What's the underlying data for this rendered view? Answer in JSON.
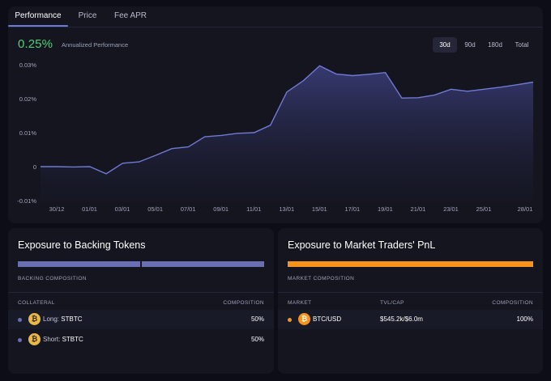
{
  "tabs": [
    {
      "label": "Performance",
      "active": true
    },
    {
      "label": "Price",
      "active": false
    },
    {
      "label": "Fee APR",
      "active": false
    }
  ],
  "performance": {
    "value": "0.25%",
    "label": "Annualized Performance",
    "value_color": "#4fcf7a"
  },
  "ranges": [
    {
      "label": "30d",
      "active": true
    },
    {
      "label": "90d",
      "active": false
    },
    {
      "label": "180d",
      "active": false
    },
    {
      "label": "Total",
      "active": false
    }
  ],
  "chart_data": {
    "type": "area",
    "y_tick_labels": [
      "0.03%",
      "0.02%",
      "0.01%",
      "0",
      "-0.01%"
    ],
    "y_tick_values": [
      0.03,
      0.02,
      0.01,
      0,
      -0.01
    ],
    "x_tick_labels": [
      "30/12",
      "01/01",
      "03/01",
      "05/01",
      "07/01",
      "09/01",
      "11/01",
      "13/01",
      "15/01",
      "17/01",
      "19/01",
      "21/01",
      "23/01",
      "25/01",
      "28/01"
    ],
    "ylim": [
      -0.0105,
      0.0305
    ],
    "x": [
      0,
      1,
      2,
      3,
      4,
      5,
      6,
      7,
      8,
      9,
      10,
      11,
      12,
      13,
      14,
      15,
      16,
      17,
      18,
      19,
      20,
      21,
      22,
      23,
      24,
      25,
      26,
      27,
      28,
      29,
      30
    ],
    "values": [
      0.0,
      0.0,
      -0.0001,
      0.0,
      -0.0021,
      0.001,
      0.0014,
      0.0033,
      0.0053,
      0.0058,
      0.0088,
      0.0092,
      0.0098,
      0.01,
      0.0122,
      0.022,
      0.0253,
      0.0297,
      0.0273,
      0.0268,
      0.0272,
      0.0277,
      0.0202,
      0.0203,
      0.0211,
      0.0228,
      0.0222,
      0.0228,
      0.0234,
      0.0241,
      0.0249
    ],
    "line_color": "#7179d6",
    "fill_color": "#3c3f7a",
    "grid": false
  },
  "backing": {
    "title": "Exposure to Backing Tokens",
    "section_label": "BACKING COMPOSITION",
    "bar_color": "#6a6eb3",
    "bar_segments": [
      50,
      50
    ],
    "col_collateral": "COLLATERAL",
    "col_composition": "COMPOSITION",
    "rows": [
      {
        "side": "Long:",
        "token": "STBTC",
        "composition": "50%"
      },
      {
        "side": "Short:",
        "token": "STBTC",
        "composition": "50%"
      }
    ]
  },
  "market": {
    "title": "Exposure to Market Traders' PnL",
    "section_label": "MARKET COMPOSITION",
    "bar_color": "#f7931a",
    "col_market": "MARKET",
    "col_tvl": "TVL/CAP",
    "col_composition": "COMPOSITION",
    "rows": [
      {
        "market": "BTC/USD",
        "tvl": "$545.2k/$6.0m",
        "composition": "100%"
      }
    ]
  }
}
